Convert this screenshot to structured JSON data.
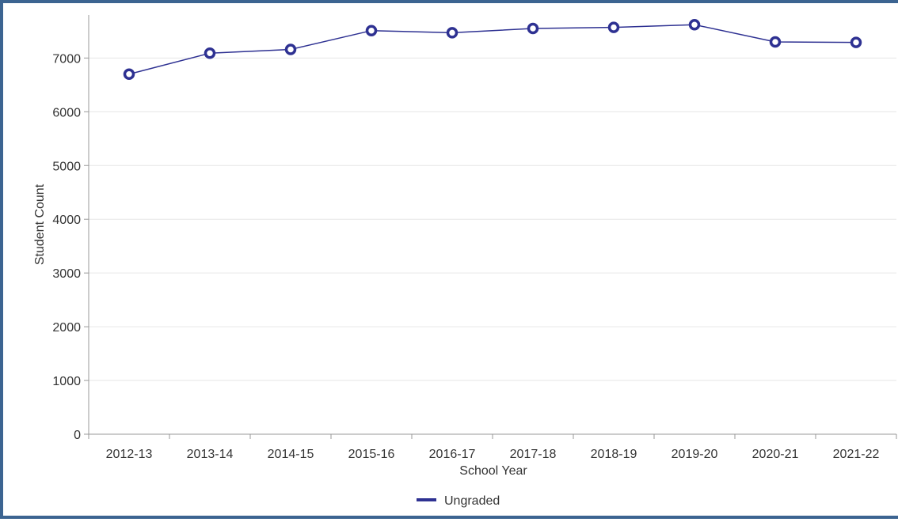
{
  "chart_data": {
    "type": "line",
    "x": [
      "2012-13",
      "2013-14",
      "2014-15",
      "2015-16",
      "2016-17",
      "2017-18",
      "2018-19",
      "2019-20",
      "2020-21",
      "2021-22"
    ],
    "series": [
      {
        "name": "Ungraded",
        "values": [
          6700,
          7090,
          7160,
          7510,
          7470,
          7550,
          7570,
          7620,
          7300,
          7290
        ]
      }
    ],
    "xlabel": "School Year",
    "ylabel": "Student Count",
    "yticks": [
      "0",
      "1000",
      "2000",
      "3000",
      "4000",
      "5000",
      "6000",
      "7000"
    ],
    "ylim": [
      0,
      7800
    ],
    "grid": true,
    "legend": "bottom-center",
    "colors": {
      "series": "#2e3192",
      "grid": "#e6e6e6",
      "axis": "#999999",
      "frame": "#3c6491"
    }
  }
}
